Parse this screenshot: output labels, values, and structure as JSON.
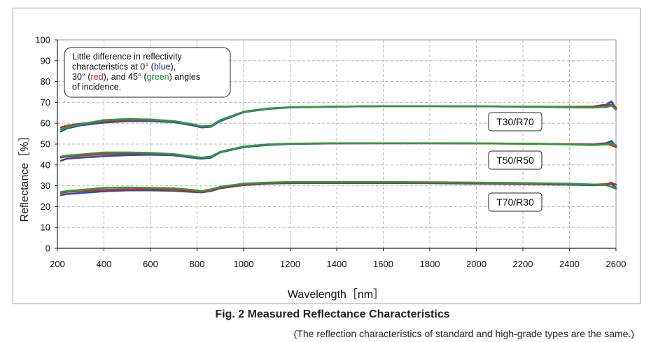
{
  "chart_data": {
    "type": "line",
    "title": "Fig. 2 Measured Reflectance Characteristics",
    "subtitle": "(The reflection characteristics of standard and high-grade types are the same.)",
    "xlabel": "Wavelength［nm］",
    "ylabel": "Reflectance［%］",
    "xlim": [
      200,
      2600
    ],
    "ylim": [
      0,
      100
    ],
    "xticks": [
      200,
      400,
      600,
      800,
      1000,
      1200,
      1400,
      1600,
      1800,
      2000,
      2200,
      2400,
      2600
    ],
    "yticks": [
      0,
      10,
      20,
      30,
      40,
      50,
      60,
      70,
      80,
      90,
      100
    ],
    "grid": true,
    "annotation": {
      "lines": [
        [
          {
            "text": "Little difference in reflectivity",
            "color": "#111111"
          }
        ],
        [
          {
            "text": "characteristics at 0° (",
            "color": "#111111"
          },
          {
            "text": "blue",
            "color": "#1f3fa8"
          },
          {
            "text": "),",
            "color": "#111111"
          }
        ],
        [
          {
            "text": "30° (",
            "color": "#111111"
          },
          {
            "text": "red",
            "color": "#c81e1e"
          },
          {
            "text": "), and 45° (",
            "color": "#111111"
          },
          {
            "text": "green",
            "color": "#1e8a2a"
          },
          {
            "text": ") angles",
            "color": "#111111"
          }
        ],
        [
          {
            "text": "of incidence.",
            "color": "#111111"
          }
        ]
      ]
    },
    "groups": [
      {
        "label": "T30/R70",
        "series": [
          {
            "name": "0°",
            "color": "#2a4db8",
            "x": [
              215,
              240,
              300,
              400,
              500,
              600,
              700,
              780,
              820,
              860,
              900,
              1000,
              1100,
              1200,
              1400,
              1600,
              1800,
              2000,
              2200,
              2400,
              2500,
              2560,
              2580,
              2600
            ],
            "y": [
              56,
              57.5,
              59,
              60.3,
              61,
              61,
              60.5,
              59,
              58,
              58.3,
              61,
              65.3,
              66.8,
              67.6,
              68,
              68.2,
              68.2,
              68.1,
              68,
              67.8,
              68,
              69,
              70.5,
              67
            ]
          },
          {
            "name": "30°",
            "color": "#c82828",
            "x": [
              215,
              240,
              300,
              400,
              500,
              600,
              700,
              780,
              820,
              860,
              900,
              1000,
              1100,
              1200,
              1400,
              1600,
              1800,
              2000,
              2200,
              2400,
              2500,
              2560,
              2580,
              2600
            ],
            "y": [
              58,
              58.8,
              59.8,
              61,
              61.5,
              61.5,
              61,
              59.5,
              58.5,
              58.8,
              61.5,
              65.5,
              67,
              67.7,
              68,
              68.2,
              68.2,
              68.1,
              68,
              67.9,
              68,
              68.5,
              69,
              67.5
            ]
          },
          {
            "name": "45°",
            "color": "#2e9a3a",
            "x": [
              215,
              240,
              300,
              400,
              500,
              600,
              700,
              780,
              820,
              860,
              900,
              1000,
              1100,
              1200,
              1400,
              1600,
              1800,
              2000,
              2200,
              2400,
              2500,
              2560,
              2580,
              2600
            ],
            "y": [
              57,
              58,
              59.5,
              61.5,
              62,
              61.8,
              61,
              59.5,
              58.5,
              58.5,
              61.5,
              65.5,
              67,
              67.7,
              68,
              68.2,
              68.2,
              68.1,
              68,
              67.6,
              67.5,
              67.8,
              68.5,
              66.5
            ]
          }
        ]
      },
      {
        "label": "T50/R50",
        "series": [
          {
            "name": "0°",
            "color": "#2a4db8",
            "x": [
              215,
              240,
              300,
              400,
              500,
              600,
              700,
              780,
              820,
              860,
              900,
              1000,
              1100,
              1200,
              1400,
              1600,
              1800,
              2000,
              2200,
              2400,
              2500,
              2560,
              2580,
              2600
            ],
            "y": [
              42,
              43,
              43.5,
              44.2,
              44.7,
              44.9,
              44.6,
              43.5,
              43,
              43.5,
              46,
              48.5,
              49.5,
              50,
              50.3,
              50.4,
              50.4,
              50.3,
              50.2,
              50,
              49.8,
              50.5,
              51.5,
              49
            ]
          },
          {
            "name": "30°",
            "color": "#c82828",
            "x": [
              215,
              240,
              300,
              400,
              500,
              600,
              700,
              780,
              820,
              860,
              900,
              1000,
              1100,
              1200,
              1400,
              1600,
              1800,
              2000,
              2200,
              2400,
              2500,
              2560,
              2580,
              2600
            ],
            "y": [
              43.5,
              44,
              44.5,
              45.2,
              45.5,
              45.5,
              45,
              44,
              43.5,
              44,
              46.3,
              48.8,
              49.8,
              50.2,
              50.4,
              50.4,
              50.4,
              50.3,
              50.2,
              50,
              49.8,
              50,
              49.5,
              48.5
            ]
          },
          {
            "name": "45°",
            "color": "#2e9a3a",
            "x": [
              215,
              240,
              300,
              400,
              500,
              600,
              700,
              780,
              820,
              860,
              900,
              1000,
              1100,
              1200,
              1400,
              1600,
              1800,
              2000,
              2200,
              2400,
              2500,
              2560,
              2580,
              2600
            ],
            "y": [
              44,
              44.5,
              45,
              46,
              46,
              45.8,
              45.2,
              44,
              43.5,
              44,
              46.3,
              48.8,
              49.8,
              50.2,
              50.4,
              50.4,
              50.4,
              50.3,
              50.2,
              49.8,
              49.5,
              49.8,
              50.5,
              49.5
            ]
          }
        ]
      },
      {
        "label": "T70/R30",
        "series": [
          {
            "name": "0°",
            "color": "#2a4db8",
            "x": [
              215,
              240,
              300,
              400,
              500,
              600,
              700,
              780,
              820,
              860,
              900,
              1000,
              1100,
              1200,
              1400,
              1600,
              1800,
              2000,
              2200,
              2400,
              2500,
              2560,
              2580,
              2600
            ],
            "y": [
              25.5,
              26,
              26.5,
              27.3,
              27.8,
              27.8,
              27.6,
              27,
              26.8,
              27.5,
              28.8,
              30.3,
              31,
              31.2,
              31.3,
              31.3,
              31.2,
              31,
              30.8,
              30.5,
              30.2,
              30.5,
              31,
              29
            ]
          },
          {
            "name": "30°",
            "color": "#c82828",
            "x": [
              215,
              240,
              300,
              400,
              500,
              600,
              700,
              780,
              820,
              860,
              900,
              1000,
              1100,
              1200,
              1400,
              1600,
              1800,
              2000,
              2200,
              2400,
              2500,
              2560,
              2580,
              2600
            ],
            "y": [
              26.5,
              27,
              27.5,
              28,
              28.3,
              28.3,
              28,
              27.5,
              27,
              27.8,
              29,
              30.5,
              31.2,
              31.5,
              31.5,
              31.5,
              31.4,
              31.2,
              31,
              30.8,
              30.5,
              30.8,
              31.5,
              30.5
            ]
          },
          {
            "name": "45°",
            "color": "#2e9a3a",
            "x": [
              215,
              240,
              300,
              400,
              500,
              600,
              700,
              780,
              820,
              860,
              900,
              1000,
              1100,
              1200,
              1400,
              1600,
              1800,
              2000,
              2200,
              2400,
              2500,
              2560,
              2580,
              2600
            ],
            "y": [
              27,
              27.5,
              28,
              29,
              29.2,
              29,
              28.8,
              28,
              27.5,
              28.3,
              29.5,
              31,
              31.5,
              31.8,
              31.8,
              31.8,
              31.7,
              31.5,
              31.3,
              31,
              30.6,
              30.2,
              29.5,
              28.5
            ]
          }
        ]
      }
    ]
  }
}
